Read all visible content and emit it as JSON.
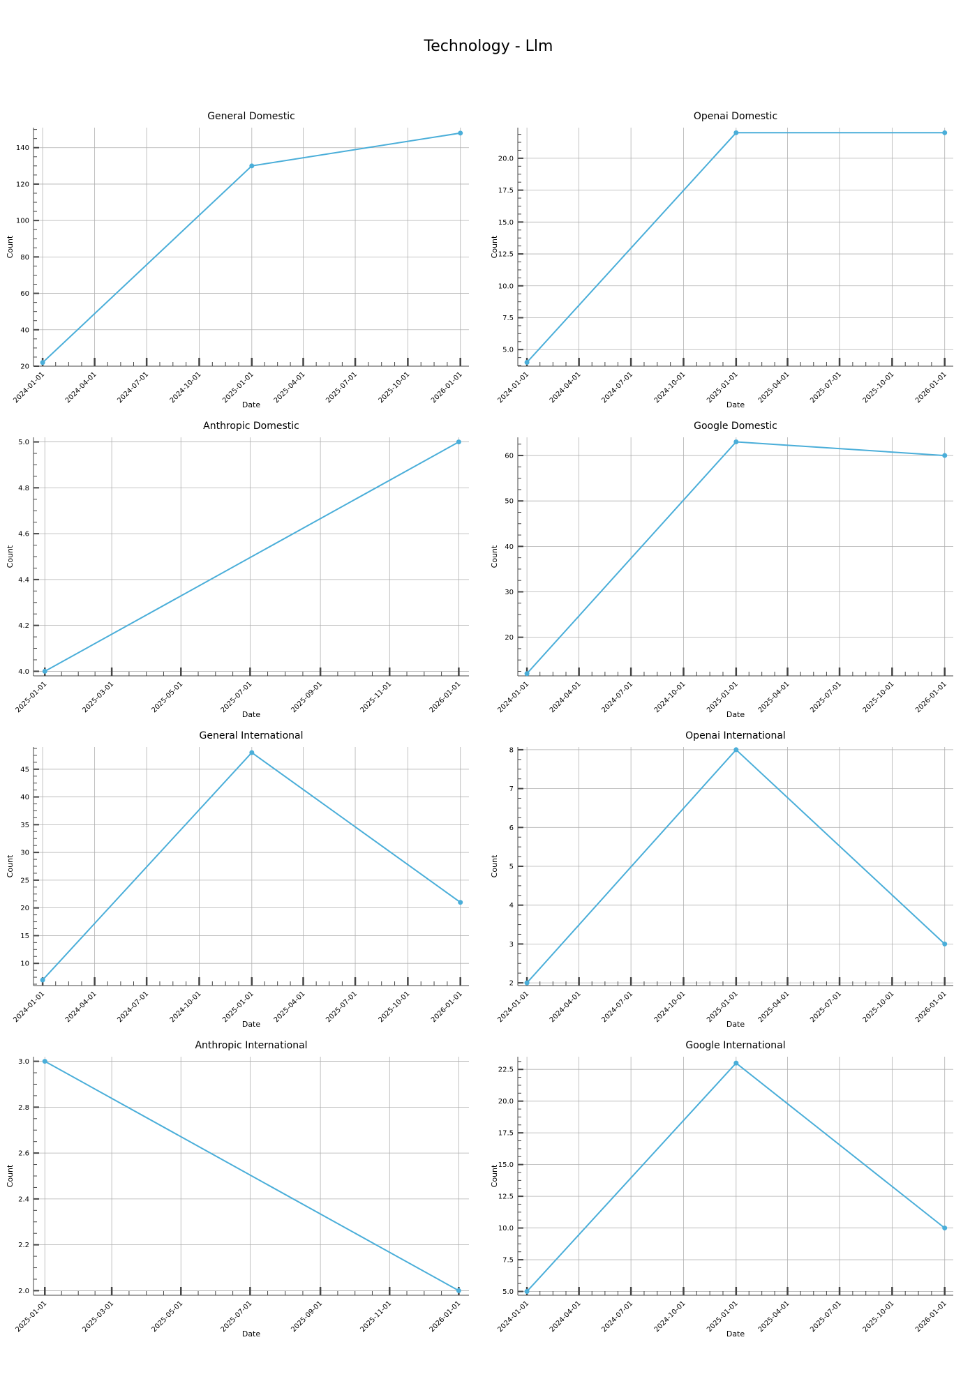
{
  "figure": {
    "title": "Technology - Llm"
  },
  "style": {
    "line_color": "#4aaed9",
    "grid_color": "#b0b0b0",
    "axis_color": "#444444"
  },
  "chart_data": [
    {
      "type": "line",
      "title": "General Domestic",
      "xlabel": "Date",
      "ylabel": "Count",
      "x": [
        "2024-01-01",
        "2025-01-01",
        "2026-01-01"
      ],
      "y": [
        22,
        130,
        148
      ],
      "xlim": [
        "2023-12-16",
        "2026-01-16"
      ],
      "ylim": [
        20,
        151
      ],
      "xticks": [
        "2024-01-01",
        "2024-04-01",
        "2024-07-01",
        "2024-10-01",
        "2025-01-01",
        "2025-04-01",
        "2025-07-01",
        "2025-10-01",
        "2026-01-01"
      ],
      "yticks": [
        20,
        40,
        60,
        80,
        100,
        120,
        140
      ],
      "ytick_labels": [
        "20",
        "40",
        "60",
        "80",
        "100",
        "120",
        "140"
      ],
      "grid": true
    },
    {
      "type": "line",
      "title": "Openai Domestic",
      "xlabel": "Date",
      "ylabel": "Count",
      "x": [
        "2024-01-01",
        "2025-01-01",
        "2026-01-01"
      ],
      "y": [
        4,
        22,
        22
      ],
      "xlim": [
        "2023-12-16",
        "2026-01-16"
      ],
      "ylim": [
        3.7,
        22.4
      ],
      "xticks": [
        "2024-01-01",
        "2024-04-01",
        "2024-07-01",
        "2024-10-01",
        "2025-01-01",
        "2025-04-01",
        "2025-07-01",
        "2025-10-01",
        "2026-01-01"
      ],
      "yticks": [
        5,
        7.5,
        10,
        12.5,
        15,
        17.5,
        20
      ],
      "ytick_labels": [
        "5.0",
        "7.5",
        "10.0",
        "12.5",
        "15.0",
        "17.5",
        "20.0"
      ],
      "grid": true
    },
    {
      "type": "line",
      "title": "Anthropic Domestic",
      "xlabel": "Date",
      "ylabel": "Count",
      "x": [
        "2025-01-01",
        "2026-01-01"
      ],
      "y": [
        4,
        5
      ],
      "xlim": [
        "2024-12-22",
        "2026-01-10"
      ],
      "ylim": [
        3.98,
        5.02
      ],
      "xticks": [
        "2025-01-01",
        "2025-03-01",
        "2025-05-01",
        "2025-07-01",
        "2025-09-01",
        "2025-11-01",
        "2026-01-01"
      ],
      "yticks": [
        4,
        4.2,
        4.4,
        4.6,
        4.8,
        5
      ],
      "ytick_labels": [
        "4.0",
        "4.2",
        "4.4",
        "4.6",
        "4.8",
        "5.0"
      ],
      "grid": true
    },
    {
      "type": "line",
      "title": "Google Domestic",
      "xlabel": "Date",
      "ylabel": "Count",
      "x": [
        "2024-01-01",
        "2025-01-01",
        "2026-01-01"
      ],
      "y": [
        12,
        63,
        60
      ],
      "xlim": [
        "2023-12-16",
        "2026-01-16"
      ],
      "ylim": [
        11.5,
        64
      ],
      "xticks": [
        "2024-01-01",
        "2024-04-01",
        "2024-07-01",
        "2024-10-01",
        "2025-01-01",
        "2025-04-01",
        "2025-07-01",
        "2025-10-01",
        "2026-01-01"
      ],
      "yticks": [
        20,
        30,
        40,
        50,
        60
      ],
      "ytick_labels": [
        "20",
        "30",
        "40",
        "50",
        "60"
      ],
      "grid": true
    },
    {
      "type": "line",
      "title": "General International",
      "xlabel": "Date",
      "ylabel": "Count",
      "x": [
        "2024-01-01",
        "2025-01-01",
        "2026-01-01"
      ],
      "y": [
        7,
        48,
        21
      ],
      "xlim": [
        "2023-12-16",
        "2026-01-16"
      ],
      "ylim": [
        6,
        49
      ],
      "xticks": [
        "2024-01-01",
        "2024-04-01",
        "2024-07-01",
        "2024-10-01",
        "2025-01-01",
        "2025-04-01",
        "2025-07-01",
        "2025-10-01",
        "2026-01-01"
      ],
      "yticks": [
        10,
        15,
        20,
        25,
        30,
        35,
        40,
        45
      ],
      "ytick_labels": [
        "10",
        "15",
        "20",
        "25",
        "30",
        "35",
        "40",
        "45"
      ],
      "grid": true
    },
    {
      "type": "line",
      "title": "Openai International",
      "xlabel": "Date",
      "ylabel": "Count",
      "x": [
        "2024-01-01",
        "2025-01-01",
        "2026-01-01"
      ],
      "y": [
        2,
        8,
        3
      ],
      "xlim": [
        "2023-12-16",
        "2026-01-16"
      ],
      "ylim": [
        1.93,
        8.07
      ],
      "xticks": [
        "2024-01-01",
        "2024-04-01",
        "2024-07-01",
        "2024-10-01",
        "2025-01-01",
        "2025-04-01",
        "2025-07-01",
        "2025-10-01",
        "2026-01-01"
      ],
      "yticks": [
        2,
        3,
        4,
        5,
        6,
        7,
        8
      ],
      "ytick_labels": [
        "2",
        "3",
        "4",
        "5",
        "6",
        "7",
        "8"
      ],
      "grid": true
    },
    {
      "type": "line",
      "title": "Anthropic International",
      "xlabel": "Date",
      "ylabel": "Count",
      "x": [
        "2025-01-01",
        "2026-01-01"
      ],
      "y": [
        3,
        2
      ],
      "xlim": [
        "2024-12-22",
        "2026-01-10"
      ],
      "ylim": [
        1.98,
        3.02
      ],
      "xticks": [
        "2025-01-01",
        "2025-03-01",
        "2025-05-01",
        "2025-07-01",
        "2025-09-01",
        "2025-11-01",
        "2026-01-01"
      ],
      "yticks": [
        2,
        2.2,
        2.4,
        2.6,
        2.8,
        3
      ],
      "ytick_labels": [
        "2.0",
        "2.2",
        "2.4",
        "2.6",
        "2.8",
        "3.0"
      ],
      "grid": true
    },
    {
      "type": "line",
      "title": "Google International",
      "xlabel": "Date",
      "ylabel": "Count",
      "x": [
        "2024-01-01",
        "2025-01-01",
        "2026-01-01"
      ],
      "y": [
        5,
        23,
        10
      ],
      "xlim": [
        "2023-12-16",
        "2026-01-16"
      ],
      "ylim": [
        4.7,
        23.5
      ],
      "xticks": [
        "2024-01-01",
        "2024-04-01",
        "2024-07-01",
        "2024-10-01",
        "2025-01-01",
        "2025-04-01",
        "2025-07-01",
        "2025-10-01",
        "2026-01-01"
      ],
      "yticks": [
        5,
        7.5,
        10,
        12.5,
        15,
        17.5,
        20,
        22.5
      ],
      "ytick_labels": [
        "5.0",
        "7.5",
        "10.0",
        "12.5",
        "15.0",
        "17.5",
        "20.0",
        "22.5"
      ],
      "grid": true
    }
  ]
}
